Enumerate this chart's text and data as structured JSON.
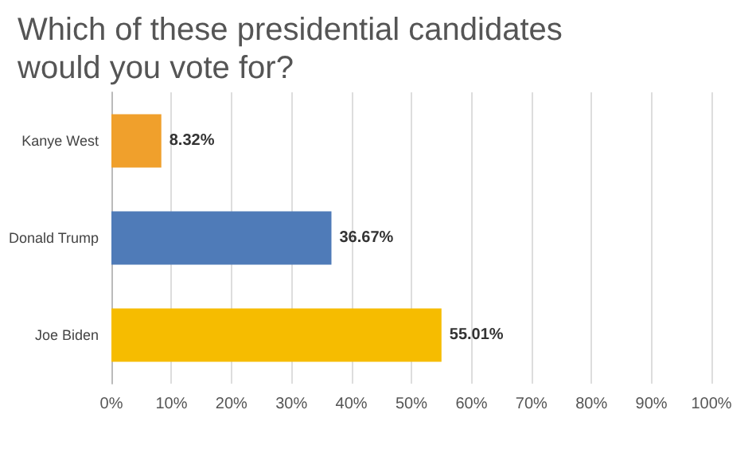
{
  "chart_data": {
    "type": "bar",
    "orientation": "horizontal",
    "title": "Which of these presidential candidates would you vote for?",
    "categories": [
      "Kanye West",
      "Donald Trump",
      "Joe Biden"
    ],
    "values": [
      8.32,
      36.67,
      55.01
    ],
    "colors": [
      "#f0a02c",
      "#4f7bb8",
      "#f6bc00"
    ],
    "value_labels": [
      "8.32%",
      "36.67%",
      "55.01%"
    ],
    "xlim": [
      0,
      100
    ],
    "xticks": [
      {
        "value": 0,
        "label": "0%"
      },
      {
        "value": 10,
        "label": "10%"
      },
      {
        "value": 20,
        "label": "20%"
      },
      {
        "value": 30,
        "label": "30%"
      },
      {
        "value": 40,
        "label": "40%"
      },
      {
        "value": 50,
        "label": "50%"
      },
      {
        "value": 60,
        "label": "60%"
      },
      {
        "value": 70,
        "label": "70%"
      },
      {
        "value": 80,
        "label": "80%"
      },
      {
        "value": 90,
        "label": "90%"
      },
      {
        "value": 100,
        "label": "100%"
      }
    ],
    "grid": "x"
  }
}
